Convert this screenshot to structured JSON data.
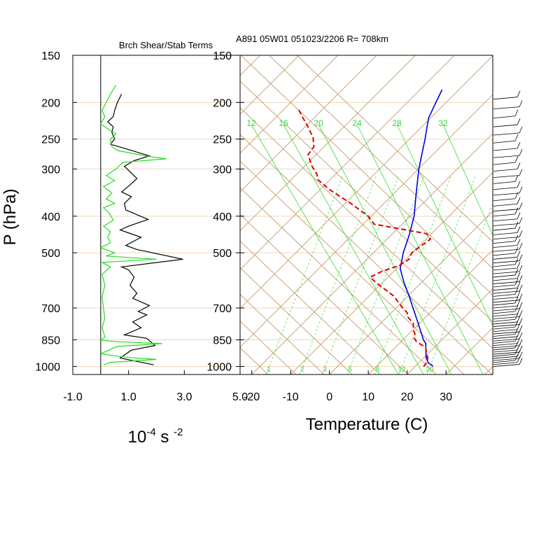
{
  "colors": {
    "background": "#ffffff",
    "pressure_grid": "#f0d6b8",
    "skewt_lines": "#c8a478",
    "mixing_ratio": "#33dd33",
    "temperature": "#0000dd",
    "dewpoint": "#dd0000",
    "shear_term": "#000000",
    "stability_term": "#22dd22",
    "axis": "#000000"
  },
  "chart_data": [
    {
      "type": "line",
      "title": "Brch Shear/Stab Terms",
      "units_label": {
        "base": "10",
        "exp1": "-4",
        "mid": " s ",
        "exp2": "-2"
      },
      "ylabel": "P (hPa)",
      "y_scale": "log",
      "ylim": [
        1050,
        150
      ],
      "xlim": [
        -1.0,
        5.0
      ],
      "xticks": [
        "-1.0",
        "1.0",
        "3.0",
        "5.0"
      ],
      "xtick_values": [
        -1.0,
        1.0,
        3.0,
        5.0
      ],
      "yticks": [
        "150",
        "200",
        "250",
        "300",
        "400",
        "500",
        "700",
        "850",
        "1000"
      ],
      "ytick_values": [
        150,
        200,
        250,
        300,
        400,
        500,
        700,
        850,
        1000
      ],
      "zero_line": 0,
      "series": [
        {
          "color_key": "shear_term",
          "points": [
            [
              0.75,
              190
            ],
            [
              0.6,
              200
            ],
            [
              0.5,
              210
            ],
            [
              0.45,
              218
            ],
            [
              0.25,
              225
            ],
            [
              0.45,
              232
            ],
            [
              0.4,
              240
            ],
            [
              0.5,
              250
            ],
            [
              0.35,
              258
            ],
            [
              0.9,
              265
            ],
            [
              1.75,
              277
            ],
            [
              1.2,
              285
            ],
            [
              0.85,
              295
            ],
            [
              1.05,
              305
            ],
            [
              1.3,
              318
            ],
            [
              1.0,
              333
            ],
            [
              0.75,
              345
            ],
            [
              1.1,
              355
            ],
            [
              0.85,
              370
            ],
            [
              0.9,
              385
            ],
            [
              1.7,
              408
            ],
            [
              1.0,
              425
            ],
            [
              0.7,
              435
            ],
            [
              1.45,
              455
            ],
            [
              0.9,
              478
            ],
            [
              1.3,
              490
            ],
            [
              2.95,
              520
            ],
            [
              0.75,
              545
            ],
            [
              1.0,
              555
            ],
            [
              1.2,
              580
            ],
            [
              1.05,
              610
            ],
            [
              1.3,
              640
            ],
            [
              1.15,
              660
            ],
            [
              1.75,
              690
            ],
            [
              1.35,
              715
            ],
            [
              1.65,
              730
            ],
            [
              1.15,
              762
            ],
            [
              1.45,
              790
            ],
            [
              0.85,
              825
            ],
            [
              1.65,
              842
            ],
            [
              1.95,
              880
            ],
            [
              1.1,
              905
            ],
            [
              0.7,
              950
            ],
            [
              1.9,
              990
            ]
          ]
        },
        {
          "color_key": "stability_term",
          "points": [
            [
              0.55,
              180
            ],
            [
              0.35,
              190
            ],
            [
              0.2,
              200
            ],
            [
              0.05,
              210
            ],
            [
              0.15,
              218
            ],
            [
              0.0,
              228
            ],
            [
              0.3,
              236
            ],
            [
              0.55,
              242
            ],
            [
              0.35,
              250
            ],
            [
              0.4,
              262
            ],
            [
              0.6,
              268
            ],
            [
              1.75,
              278
            ],
            [
              2.35,
              282
            ],
            [
              0.8,
              288
            ],
            [
              0.55,
              300
            ],
            [
              0.2,
              312
            ],
            [
              0.5,
              322
            ],
            [
              0.1,
              334
            ],
            [
              0.4,
              347
            ],
            [
              0.2,
              360
            ],
            [
              0.5,
              370
            ],
            [
              0.1,
              380
            ],
            [
              0.3,
              392
            ],
            [
              0.45,
              410
            ],
            [
              0.1,
              425
            ],
            [
              0.35,
              440
            ],
            [
              0.25,
              455
            ],
            [
              0.35,
              470
            ],
            [
              0.0,
              485
            ],
            [
              0.5,
              500
            ],
            [
              0.2,
              510
            ],
            [
              2.0,
              520
            ],
            [
              0.05,
              530
            ],
            [
              0.35,
              545
            ],
            [
              0.05,
              570
            ],
            [
              0.15,
              610
            ],
            [
              0.05,
              655
            ],
            [
              0.1,
              700
            ],
            [
              0.15,
              745
            ],
            [
              0.05,
              790
            ],
            [
              0.15,
              835
            ],
            [
              0.0,
              852
            ],
            [
              0.6,
              860
            ],
            [
              2.2,
              870
            ],
            [
              0.6,
              885
            ],
            [
              0.0,
              925
            ],
            [
              0.9,
              945
            ],
            [
              2.0,
              958
            ],
            [
              0.35,
              975
            ],
            [
              0.1,
              990
            ]
          ]
        }
      ]
    },
    {
      "type": "line",
      "title": "A891 05W01 051023/2206 R= 708km",
      "xlabel": "Temperature (C)",
      "y_scale": "log",
      "ylim": [
        1050,
        150
      ],
      "xlim": [
        -23,
        42
      ],
      "skew": "45deg",
      "xticks": [
        "-20",
        "-10",
        "0",
        "10",
        "20",
        "30"
      ],
      "xtick_values": [
        -20,
        -10,
        0,
        10,
        20,
        30
      ],
      "yticks": [
        "150",
        "200",
        "250",
        "300",
        "400",
        "500",
        "700",
        "850",
        "1000"
      ],
      "ytick_values": [
        150,
        200,
        250,
        300,
        400,
        500,
        700,
        850,
        1000
      ],
      "mixing_ratio_top_labels": [
        "12",
        "16",
        "20",
        "24",
        "28",
        "32"
      ],
      "mixing_ratio_bottom_labels": [
        "1",
        "2",
        "3",
        "5",
        "8",
        "12",
        "20"
      ],
      "series": [
        {
          "color_key": "temperature",
          "style": "solid",
          "points": [
            [
              26.6,
              1000
            ],
            [
              26.3,
              990
            ],
            [
              25.5,
              980
            ],
            [
              24.9,
              950
            ],
            [
              24.8,
              900
            ],
            [
              24.8,
              870
            ],
            [
              24.2,
              850
            ],
            [
              22.5,
              750
            ],
            [
              21.5,
              700
            ],
            [
              20.5,
              650
            ],
            [
              19.2,
              600
            ],
            [
              18.2,
              550
            ],
            [
              19.0,
              500
            ],
            [
              20.5,
              450
            ],
            [
              21.8,
              400
            ],
            [
              22.3,
              350
            ],
            [
              23.0,
              300
            ],
            [
              24.6,
              250
            ],
            [
              25.5,
              220
            ],
            [
              27.4,
              200
            ],
            [
              29.0,
              185
            ]
          ]
        },
        {
          "color_key": "dewpoint",
          "style": "dashed",
          "points": [
            [
              24.2,
              1000
            ],
            [
              24.6,
              990
            ],
            [
              25.1,
              970
            ],
            [
              25.3,
              950
            ],
            [
              25.0,
              920
            ],
            [
              24.8,
              895
            ],
            [
              24.0,
              880
            ],
            [
              22.4,
              860
            ],
            [
              21.8,
              840
            ],
            [
              22.0,
              820
            ],
            [
              21.6,
              800
            ],
            [
              21.6,
              770
            ],
            [
              20.2,
              740
            ],
            [
              20.0,
              720
            ],
            [
              18.9,
              700
            ],
            [
              16.5,
              650
            ],
            [
              12.0,
              600
            ],
            [
              10.5,
              580
            ],
            [
              13.5,
              560
            ],
            [
              18.0,
              540
            ],
            [
              20.5,
              520
            ],
            [
              21.2,
              500
            ],
            [
              23.5,
              480
            ],
            [
              26.0,
              460
            ],
            [
              25.0,
              445
            ],
            [
              17.0,
              430
            ],
            [
              11.5,
              420
            ],
            [
              10.0,
              400
            ],
            [
              5.5,
              370
            ],
            [
              0.0,
              340
            ],
            [
              -3.0,
              320
            ],
            [
              -3.2,
              310
            ],
            [
              -4.5,
              295
            ],
            [
              -5.5,
              275
            ],
            [
              -4.0,
              262
            ],
            [
              -4.2,
              248
            ],
            [
              -5.5,
              232
            ],
            [
              -7.0,
              218
            ],
            [
              -8.0,
              208
            ]
          ]
        }
      ],
      "wind_barbs": "present"
    }
  ]
}
